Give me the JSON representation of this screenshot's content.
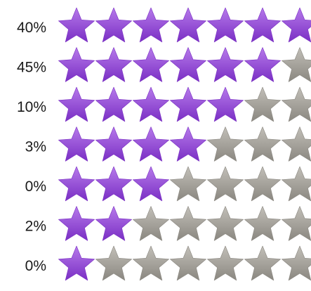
{
  "chart_data": {
    "type": "table",
    "max_stars": 7,
    "rows": [
      {
        "label": "40%",
        "filled": 7
      },
      {
        "label": "45%",
        "filled": 6
      },
      {
        "label": "10%",
        "filled": 5
      },
      {
        "label": "3%",
        "filled": 4
      },
      {
        "label": "0%",
        "filled": 3
      },
      {
        "label": "2%",
        "filled": 2
      },
      {
        "label": "0%",
        "filled": 1
      }
    ],
    "colors": {
      "filled_light": "#b679ea",
      "filled_dark": "#7a2fc4",
      "empty_light": "#c2bfb8",
      "empty_dark": "#8a8780",
      "label": "#1a1a1a"
    }
  }
}
